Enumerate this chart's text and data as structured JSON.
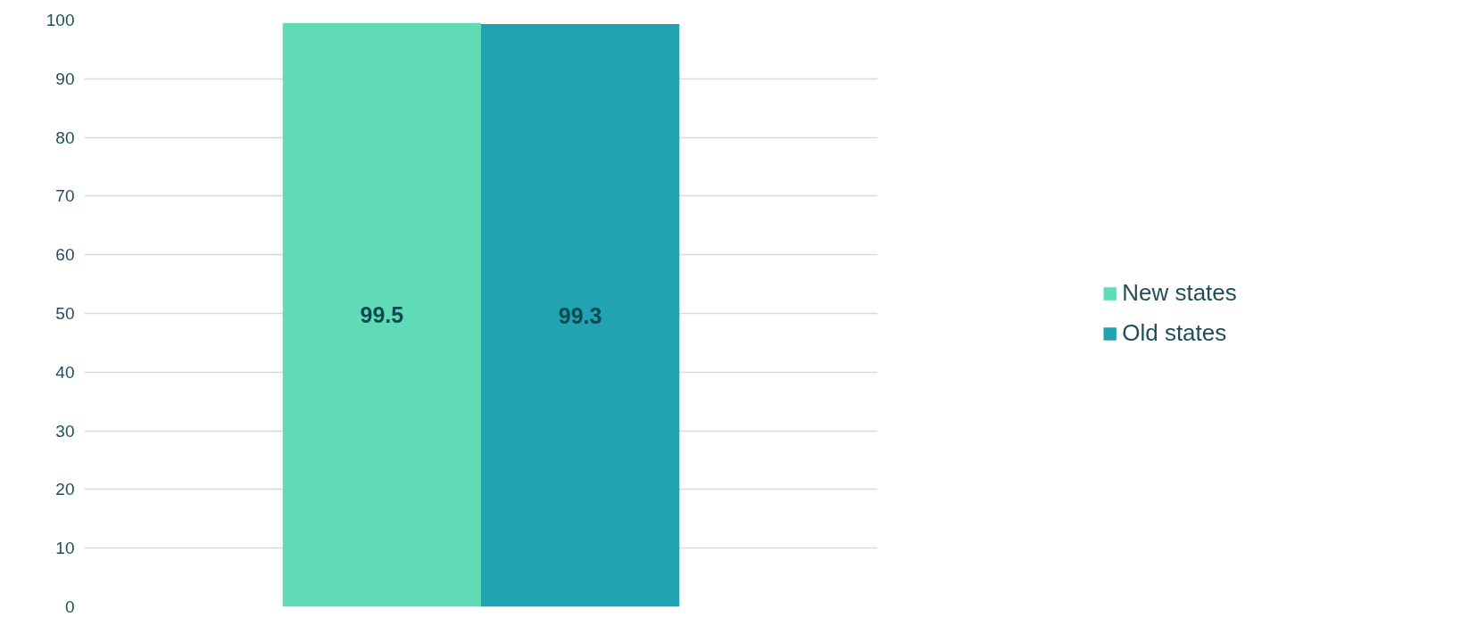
{
  "chart_data": {
    "type": "bar",
    "categories": [
      null
    ],
    "series": [
      {
        "name": "New states",
        "color": "#61dbb6",
        "values": [
          99.5
        ]
      },
      {
        "name": "Old states",
        "color": "#21a3b3",
        "values": [
          99.3
        ]
      }
    ],
    "ylim": [
      0,
      100
    ],
    "yticks": [
      0,
      10,
      20,
      30,
      40,
      50,
      60,
      70,
      80,
      90,
      100
    ],
    "grid": "y",
    "legend": "right",
    "data_labels": true,
    "tick_labels": "y"
  }
}
